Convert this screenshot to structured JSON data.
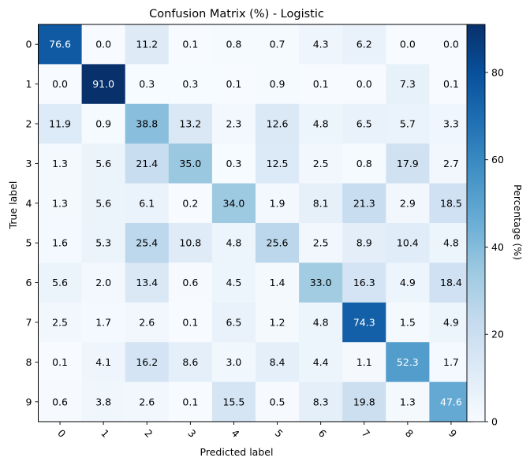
{
  "chart_data": {
    "type": "heatmap",
    "title": "Confusion Matrix (%) - Logistic",
    "xlabel": "Predicted label",
    "ylabel": "True label",
    "x_categories": [
      "0",
      "1",
      "2",
      "3",
      "4",
      "5",
      "6",
      "7",
      "8",
      "9"
    ],
    "y_categories": [
      "0",
      "1",
      "2",
      "3",
      "4",
      "5",
      "6",
      "7",
      "8",
      "9"
    ],
    "values": [
      [
        76.6,
        0.0,
        11.2,
        0.1,
        0.8,
        0.7,
        4.3,
        6.2,
        0.0,
        0.0
      ],
      [
        0.0,
        91.0,
        0.3,
        0.3,
        0.1,
        0.9,
        0.1,
        0.0,
        7.3,
        0.1
      ],
      [
        11.9,
        0.9,
        38.8,
        13.2,
        2.3,
        12.6,
        4.8,
        6.5,
        5.7,
        3.3
      ],
      [
        1.3,
        5.6,
        21.4,
        35.0,
        0.3,
        12.5,
        2.5,
        0.8,
        17.9,
        2.7
      ],
      [
        1.3,
        5.6,
        6.1,
        0.2,
        34.0,
        1.9,
        8.1,
        21.3,
        2.9,
        18.5
      ],
      [
        1.6,
        5.3,
        25.4,
        10.8,
        4.8,
        25.6,
        2.5,
        8.9,
        10.4,
        4.8
      ],
      [
        5.6,
        2.0,
        13.4,
        0.6,
        4.5,
        1.4,
        33.0,
        16.3,
        4.9,
        18.4
      ],
      [
        2.5,
        1.7,
        2.6,
        0.1,
        6.5,
        1.2,
        4.8,
        74.3,
        1.5,
        4.9
      ],
      [
        0.1,
        4.1,
        16.2,
        8.6,
        3.0,
        8.4,
        4.4,
        1.1,
        52.3,
        1.7
      ],
      [
        0.6,
        3.8,
        2.6,
        0.1,
        15.5,
        0.5,
        8.3,
        19.8,
        1.3,
        47.6
      ]
    ],
    "colorscale": "Blues",
    "color_range": [
      0,
      91.0
    ],
    "colorbar": {
      "label": "Percentage (%)",
      "ticks": [
        0,
        20,
        40,
        60,
        80
      ]
    },
    "text_color_light": "#ffffff",
    "text_color_dark": "#000000",
    "grid": false
  }
}
